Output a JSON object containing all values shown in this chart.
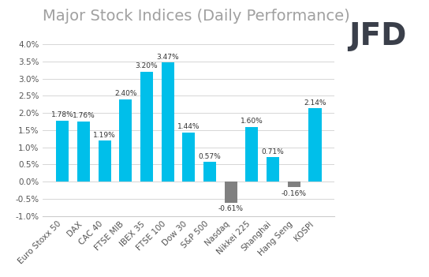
{
  "title": "Major Stock Indices (Daily Performance)",
  "categories": [
    "Euro Stoxx 50",
    "DAX",
    "CAC 40",
    "FTSE MIB",
    "IBEX 35",
    "FTSE 100",
    "Dow 30",
    "S&P 500",
    "Nasdaq",
    "Nikkei 225",
    "Shanghai",
    "Hang Seng",
    "KOSPI"
  ],
  "values": [
    1.78,
    1.76,
    1.19,
    2.4,
    3.2,
    3.47,
    1.44,
    0.57,
    -0.61,
    1.6,
    0.71,
    -0.16,
    2.14
  ],
  "labels": [
    "1.78%",
    "1.76%",
    "1.19%",
    "2.40%",
    "3.20%",
    "3.47%",
    "1.44%",
    "0.57%",
    "-0.61%",
    "1.60%",
    "0.71%",
    "-0.16%",
    "2.14%"
  ],
  "bar_color_positive": "#00BFEA",
  "bar_color_negative": "#808080",
  "ylim": [
    -1.0,
    4.0
  ],
  "yticks": [
    -1.0,
    -0.5,
    0.0,
    0.5,
    1.0,
    1.5,
    2.0,
    2.5,
    3.0,
    3.5,
    4.0
  ],
  "background_color": "#ffffff",
  "grid_color": "#d0d0d0",
  "title_fontsize": 14,
  "title_color": "#a0a0a0",
  "label_fontsize": 6.5,
  "label_color": "#333333",
  "tick_fontsize": 7.5,
  "logo_text": "JFD",
  "logo_fontsize": 28,
  "logo_color": "#3a3f4a",
  "bar_width": 0.6
}
